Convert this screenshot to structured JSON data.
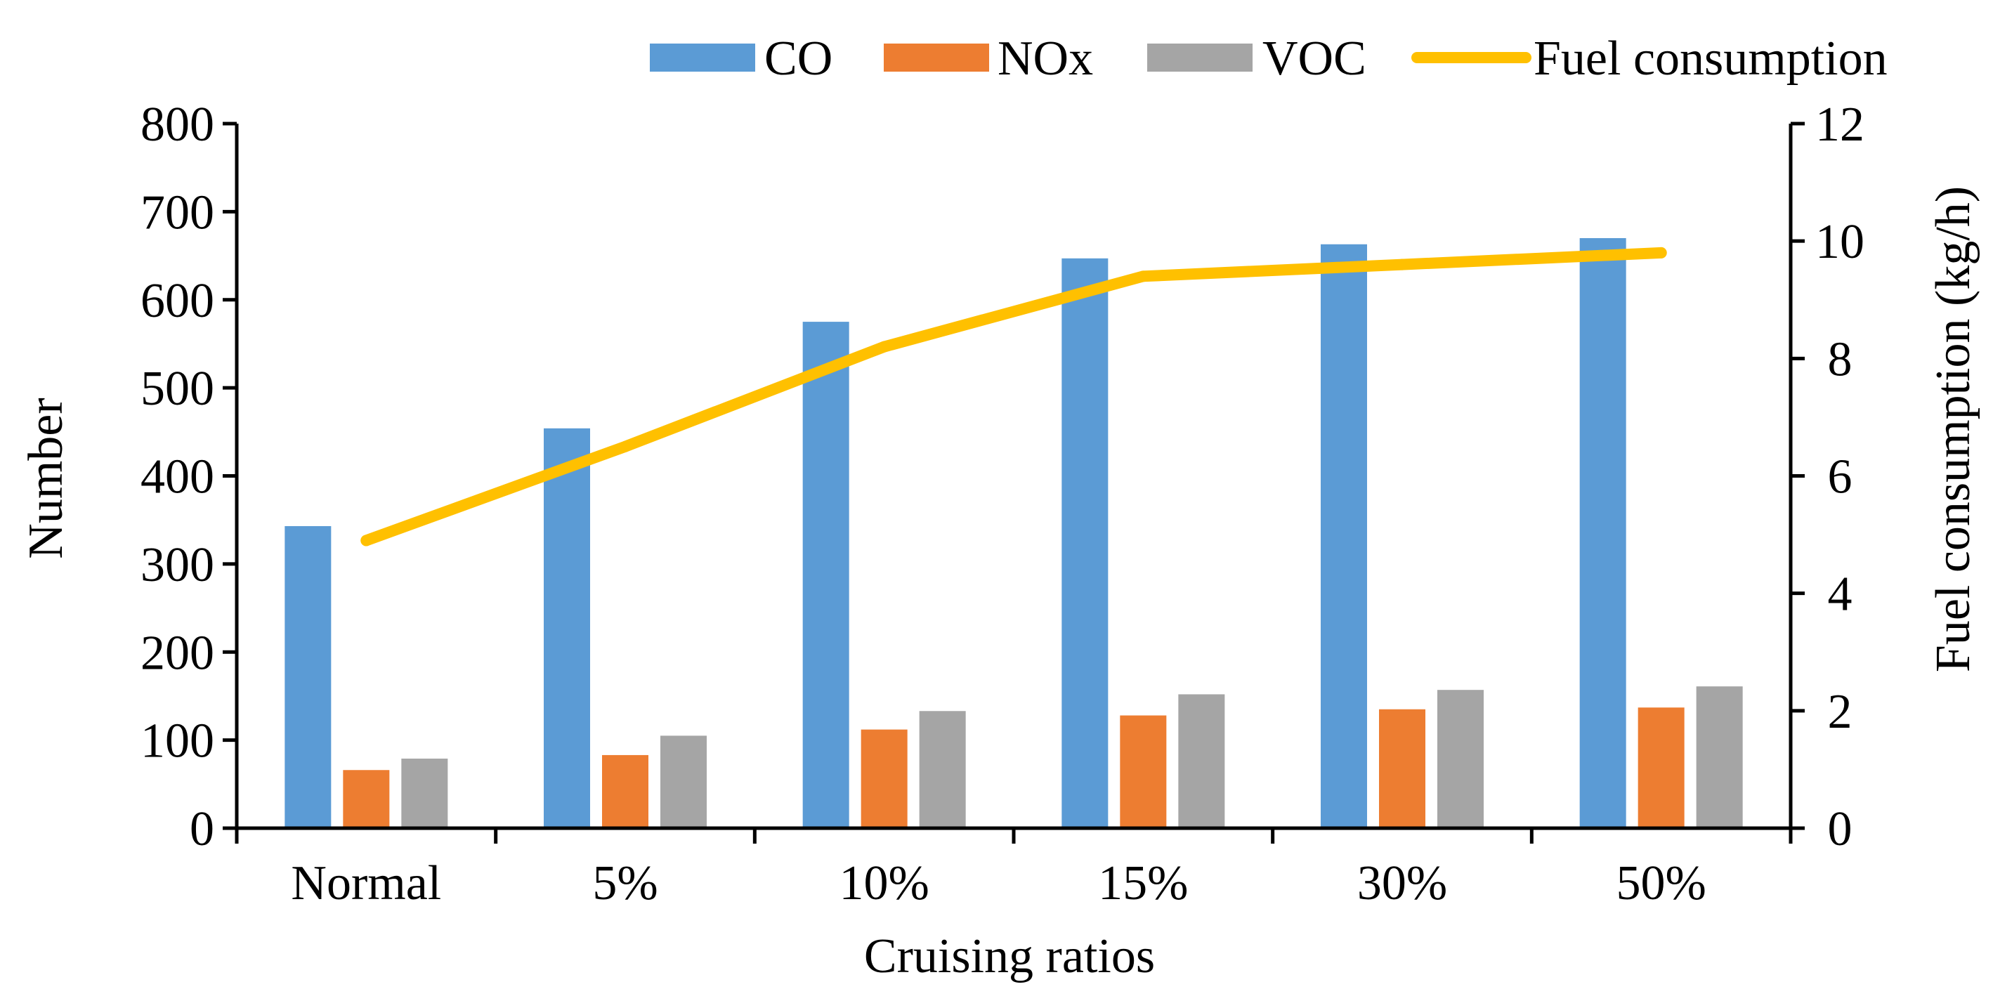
{
  "chart_data": {
    "type": "bar",
    "categories": [
      "Normal",
      "5%",
      "10%",
      "15%",
      "30%",
      "50%"
    ],
    "series": [
      {
        "name": "CO",
        "type": "bar",
        "axis": "left",
        "color": "#5b9bd5",
        "values": [
          343,
          454,
          575,
          647,
          663,
          670
        ]
      },
      {
        "name": "NOx",
        "type": "bar",
        "axis": "left",
        "color": "#ed7d31",
        "values": [
          66,
          83,
          112,
          128,
          135,
          137
        ]
      },
      {
        "name": "VOC",
        "type": "bar",
        "axis": "left",
        "color": "#a5a5a5",
        "values": [
          79,
          105,
          133,
          152,
          157,
          161
        ]
      },
      {
        "name": "Fuel consumption",
        "type": "line",
        "axis": "right",
        "color": "#ffc000",
        "values": [
          4.9,
          6.5,
          8.2,
          9.4,
          9.6,
          9.8
        ]
      }
    ],
    "xlabel": "Cruising ratios",
    "ylabel": "Number",
    "y2label": "Fuel consumption (kg/h)",
    "ylim": [
      0,
      800
    ],
    "yticks": [
      0,
      100,
      200,
      300,
      400,
      500,
      600,
      700,
      800
    ],
    "y2lim": [
      0,
      12
    ],
    "y2ticks": [
      0,
      2,
      4,
      6,
      8,
      10,
      12
    ],
    "grid": false,
    "legend_position": "top"
  }
}
